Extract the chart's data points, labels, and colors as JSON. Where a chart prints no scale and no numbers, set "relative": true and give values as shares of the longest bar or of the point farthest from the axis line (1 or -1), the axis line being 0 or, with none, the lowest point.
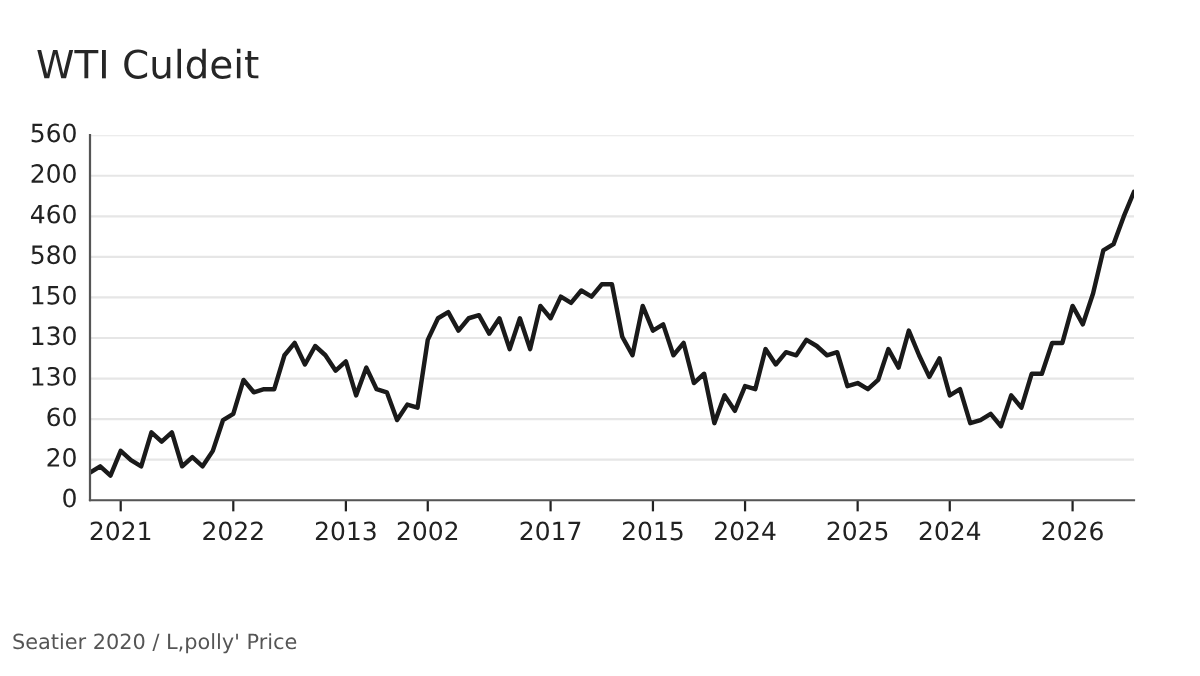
{
  "chart_data": {
    "type": "line",
    "title": "WTI Culdeit",
    "annotations": [
      "Seatier 2020 / L,polly' Price",
      "560",
      "200",
      "460",
      "580",
      "150",
      "130",
      "130",
      "60",
      "20",
      "0"
    ],
    "relative": true,
    "categories": [
      null,
      null,
      null,
      "2021",
      null,
      null,
      null,
      null,
      null,
      null,
      null,
      null,
      null,
      null,
      "2022",
      null,
      null,
      null,
      null,
      null,
      null,
      null,
      null,
      null,
      null,
      "2013",
      null,
      null,
      null,
      null,
      null,
      null,
      null,
      "2002",
      null,
      null,
      null,
      null,
      null,
      null,
      null,
      null,
      null,
      null,
      null,
      "2017",
      null,
      null,
      null,
      null,
      null,
      null,
      null,
      null,
      null,
      "2015",
      null,
      null,
      null,
      null,
      null,
      null,
      null,
      null,
      "2024",
      null,
      null,
      null,
      null,
      null,
      null,
      null,
      null,
      null,
      null,
      "2025",
      null,
      null,
      null,
      null,
      null,
      null,
      null,
      null,
      "2024",
      null,
      null,
      null,
      null,
      null,
      null,
      null,
      null,
      null,
      null,
      null,
      "2026",
      null,
      null,
      null,
      null,
      null,
      null
    ],
    "series": [
      {
        "color": "#1a1a1a",
        "values": [
          0.09,
          0.11,
          0.08,
          0.16,
          0.13,
          0.11,
          0.22,
          0.19,
          0.22,
          0.11,
          0.14,
          0.11,
          0.16,
          0.26,
          0.28,
          0.39,
          0.35,
          0.36,
          0.36,
          0.47,
          0.51,
          0.44,
          0.5,
          0.47,
          0.42,
          0.45,
          0.34,
          0.43,
          0.36,
          0.35,
          0.26,
          0.31,
          0.3,
          0.52,
          0.59,
          0.61,
          0.55,
          0.59,
          0.6,
          0.54,
          0.59,
          0.49,
          0.59,
          0.49,
          0.63,
          0.59,
          0.66,
          0.64,
          0.68,
          0.66,
          0.7,
          0.7,
          0.53,
          0.47,
          0.63,
          0.55,
          0.57,
          0.47,
          0.51,
          0.38,
          0.41,
          0.25,
          0.34,
          0.29,
          0.37,
          0.36,
          0.49,
          0.44,
          0.48,
          0.47,
          0.52,
          0.5,
          0.47,
          0.48,
          0.37,
          0.38,
          0.36,
          0.39,
          0.49,
          0.43,
          0.55,
          0.47,
          0.4,
          0.46,
          0.34,
          0.36,
          0.25,
          0.26,
          0.28,
          0.24,
          0.34,
          0.3,
          0.41,
          0.41,
          0.51,
          0.51,
          0.63,
          0.57,
          0.67,
          0.81,
          0.83,
          0.92,
          1
        ]
      }
    ],
    "grid": "y",
    "line_style": "solid",
    "marker": "none"
  }
}
